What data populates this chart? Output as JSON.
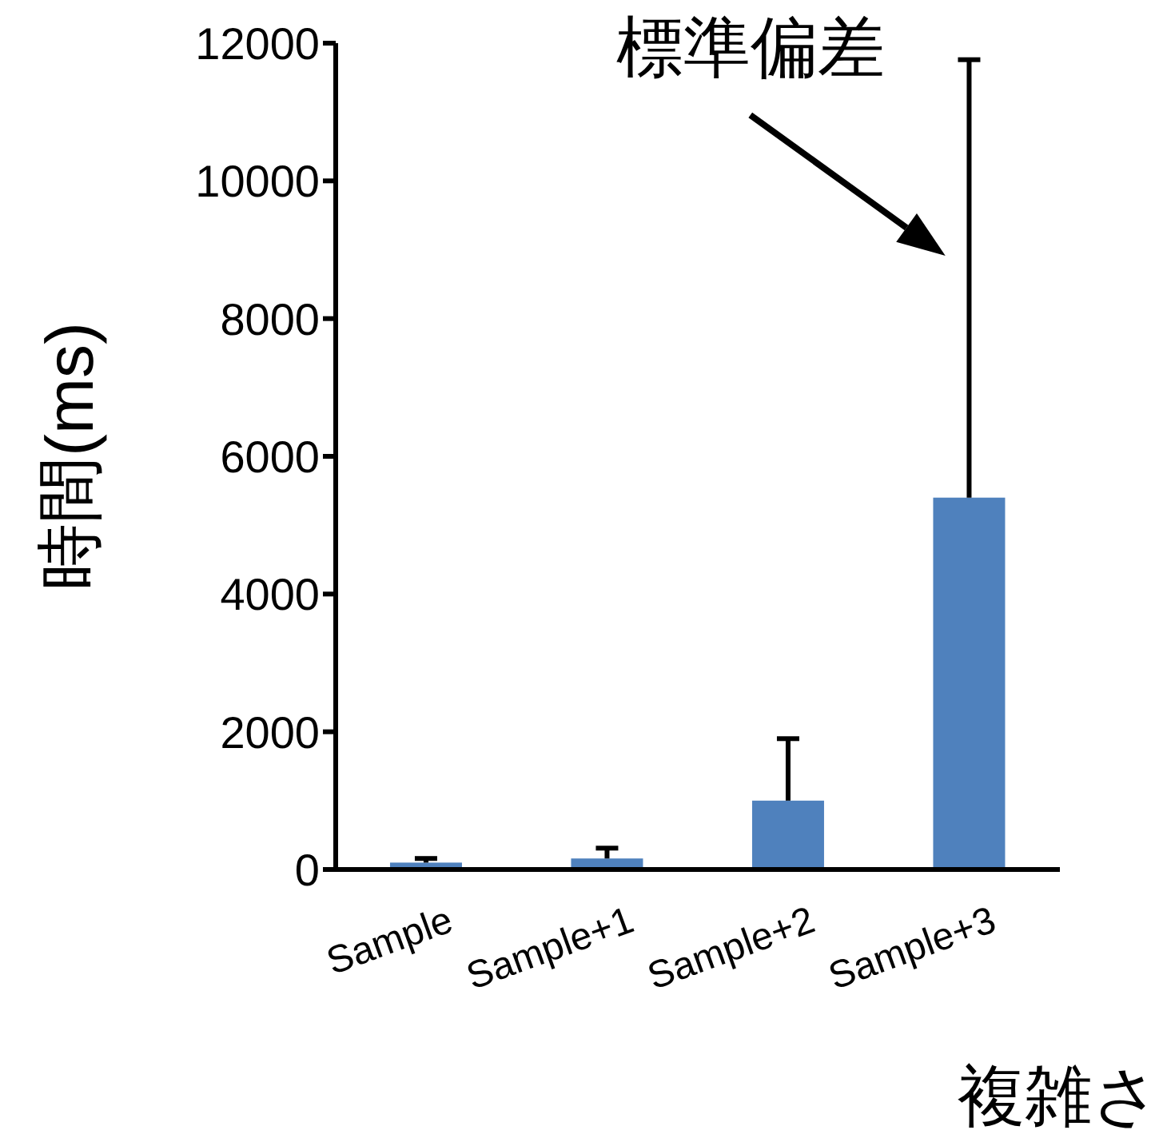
{
  "chart_data": {
    "type": "bar",
    "xlabel": "複雑さ",
    "ylabel": "時間(ms)",
    "categories": [
      "Sample",
      "Sample+1",
      "Sample+2",
      "Sample+3"
    ],
    "values": [
      100,
      160,
      1000,
      5400
    ],
    "color": "#4f81bd",
    "errors": [
      [
        100,
        160
      ],
      [
        160,
        310
      ],
      [
        1000,
        1900
      ],
      [
        5400,
        11760
      ]
    ],
    "ylim": [
      0,
      12000
    ],
    "yticks": [
      0,
      2000,
      4000,
      6000,
      8000,
      10000,
      12000
    ],
    "annotations": [
      "標準偏差"
    ]
  }
}
